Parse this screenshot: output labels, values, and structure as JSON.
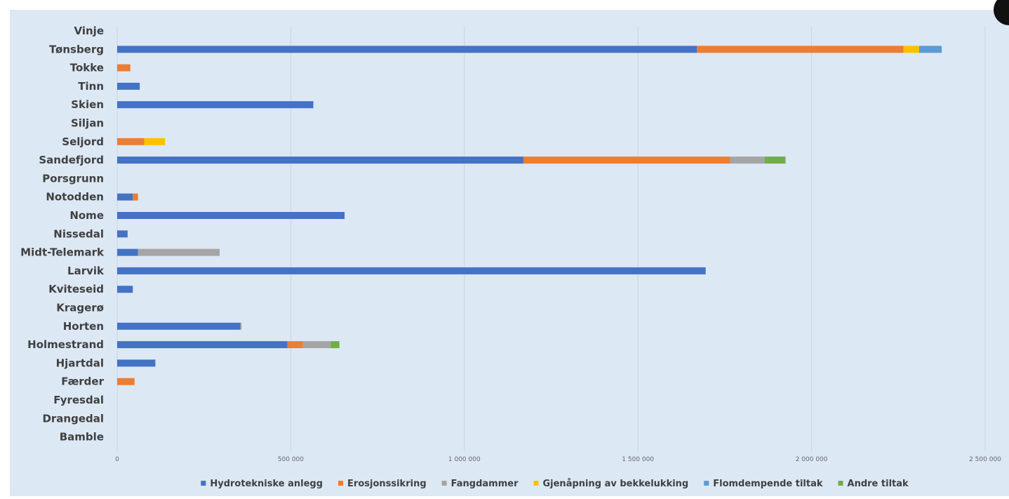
{
  "chart_data": {
    "type": "bar",
    "orientation": "horizontal",
    "stacked": true,
    "title": "",
    "xlabel": "",
    "ylabel": "",
    "xlim": [
      0,
      2500000
    ],
    "x_ticks": [
      0,
      500000,
      1000000,
      1500000,
      2000000,
      2500000
    ],
    "x_tick_labels": [
      "0",
      "500 000",
      "1 000 000",
      "1 500 000",
      "2 000 000",
      "2 500 000"
    ],
    "grid": "vertical",
    "legend_position": "bottom",
    "categories": [
      "Vinje",
      "Tønsberg",
      "Tokke",
      "Tinn",
      "Skien",
      "Siljan",
      "Seljord",
      "Sandefjord",
      "Porsgrunn",
      "Notodden",
      "Nome",
      "Nissedal",
      "Midt-Telemark",
      "Larvik",
      "Kviteseid",
      "Kragerø",
      "Horten",
      "Holmestrand",
      "Hjartdal",
      "Færder",
      "Fyresdal",
      "Drangedal",
      "Bamble"
    ],
    "series": [
      {
        "name": "Hydrotekniske anlegg",
        "color": "#4472c4",
        "values": [
          0,
          1670000,
          0,
          65000,
          565000,
          0,
          0,
          1170000,
          0,
          45000,
          655000,
          30000,
          60000,
          1695000,
          45000,
          0,
          355000,
          490000,
          110000,
          0,
          0,
          0,
          0
        ]
      },
      {
        "name": "Erosjonssikring",
        "color": "#ed7d31",
        "values": [
          0,
          595000,
          38000,
          0,
          0,
          0,
          78000,
          595000,
          0,
          15000,
          0,
          0,
          0,
          0,
          0,
          0,
          0,
          45000,
          0,
          50000,
          0,
          0,
          0
        ]
      },
      {
        "name": "Fangdammer",
        "color": "#a5a5a5",
        "values": [
          0,
          0,
          0,
          0,
          0,
          0,
          0,
          100000,
          0,
          0,
          0,
          0,
          235000,
          0,
          0,
          0,
          3000,
          80000,
          0,
          0,
          0,
          0,
          0
        ]
      },
      {
        "name": "Gjenåpning av bekkelukking",
        "color": "#ffc000",
        "values": [
          0,
          45000,
          0,
          0,
          0,
          0,
          60000,
          0,
          0,
          0,
          0,
          0,
          0,
          0,
          0,
          0,
          0,
          0,
          0,
          0,
          0,
          0,
          0
        ]
      },
      {
        "name": "Flomdempende tiltak",
        "color": "#5b9bd5",
        "values": [
          0,
          65000,
          0,
          0,
          0,
          0,
          0,
          0,
          0,
          0,
          0,
          0,
          0,
          0,
          0,
          0,
          0,
          0,
          0,
          0,
          0,
          0,
          0
        ]
      },
      {
        "name": "Andre tiltak",
        "color": "#70ad47",
        "values": [
          0,
          0,
          0,
          0,
          0,
          0,
          0,
          60000,
          0,
          0,
          0,
          0,
          0,
          0,
          0,
          0,
          0,
          25000,
          0,
          0,
          0,
          0,
          0
        ]
      }
    ]
  }
}
